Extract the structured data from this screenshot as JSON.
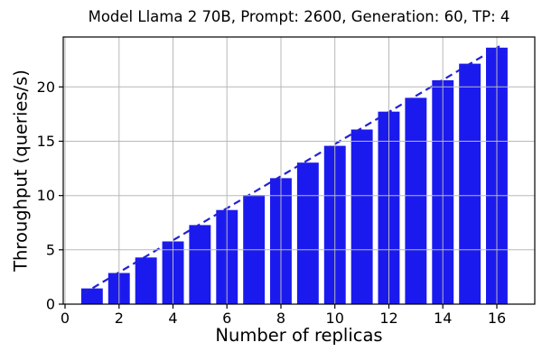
{
  "chart_data": {
    "type": "bar",
    "title": "Model Llama 2 70B, Prompt: 2600, Generation: 60, TP: 4",
    "xlabel": "Number of replicas",
    "ylabel": "Throughput (queries/s)",
    "x": [
      1,
      2,
      3,
      4,
      5,
      6,
      7,
      8,
      9,
      10,
      11,
      12,
      13,
      14,
      15,
      16
    ],
    "values": [
      1.45,
      2.87,
      4.3,
      5.78,
      7.28,
      8.67,
      10.05,
      11.6,
      13.03,
      14.58,
      16.08,
      17.73,
      19.0,
      20.62,
      22.14,
      23.62
    ],
    "trend_line": {
      "style": "dashed",
      "slope_per_replica": 1.47,
      "x_start": 0.65,
      "y_start": 0.93,
      "x_end": 16.1,
      "y_end": 23.75
    },
    "xticks": [
      0,
      2,
      4,
      6,
      8,
      10,
      12,
      14,
      16
    ],
    "yticks": [
      0,
      5,
      10,
      15,
      20
    ],
    "xlim": [
      -0.067,
      17.406
    ],
    "ylim": [
      0,
      24.6
    ],
    "bar_width_units": 0.8,
    "grid": true,
    "legend": "none",
    "colors": {
      "bar": "#1b1aee",
      "trend_line": "#2121d6",
      "grid": "#b8b8b8",
      "spine": "#000000",
      "text": "#000000"
    },
    "tick_font_px": 16
  }
}
